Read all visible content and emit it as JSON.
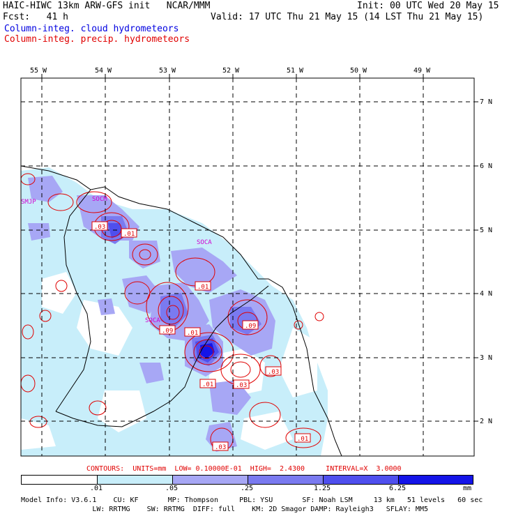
{
  "header": {
    "line1_left": "HAIC-HIWC 13km ARW-GFS init   NCAR/MMM",
    "line1_right": "Init: 00 UTC Wed 20 May 15",
    "line2_left": "Fcst:   41 h",
    "line2_right": "Valid: 17 UTC Thu 21 May 15 (14 LST Thu 21 May 15)",
    "field_cloud": "Column-integ. cloud hydrometeors",
    "field_precip": "Column-integ. precip. hydrometeors"
  },
  "map": {
    "lon_labels": [
      "55 W",
      "54 W",
      "53 W",
      "52 W",
      "51 W",
      "50 W",
      "49 W"
    ],
    "lat_labels": [
      "7 N",
      "6 N",
      "5 N",
      "4 N",
      "3 N",
      "2 N"
    ],
    "stations": [
      "SMJP",
      "SOCM",
      "SOCA",
      "SOCA"
    ],
    "contour_labels": [
      ".03",
      ".01",
      ".01",
      ".09",
      ".09",
      ".01",
      ".01",
      ".03",
      ".03",
      ".03",
      ".01"
    ]
  },
  "legend": {
    "contour_info": "CONTOURS:  UNITS=mm  LOW= 0.10000E-01  HIGH=  2.4300     INTERVAL=X  3.0000",
    "colorbar_levels": [
      ".01",
      ".05",
      ".25",
      "1.25",
      "6.25",
      "mm"
    ],
    "colorbar_colors": [
      "#ffffff",
      "#c8eefa",
      "#a7a7f5",
      "#7a7af0",
      "#4f4fee",
      "#1414e8"
    ]
  },
  "footer": {
    "line1": "Model Info: V3.6.1    CU: KF       MP: Thompson     PBL: YSU       SF: Noah LSM     13 km   51 levels   60 sec",
    "line2": "                 LW: RRTMG    SW: RRTMG  DIFF: full    KM: 2D Smagor DAMP: Rayleigh3   SFLAY: MM5"
  }
}
